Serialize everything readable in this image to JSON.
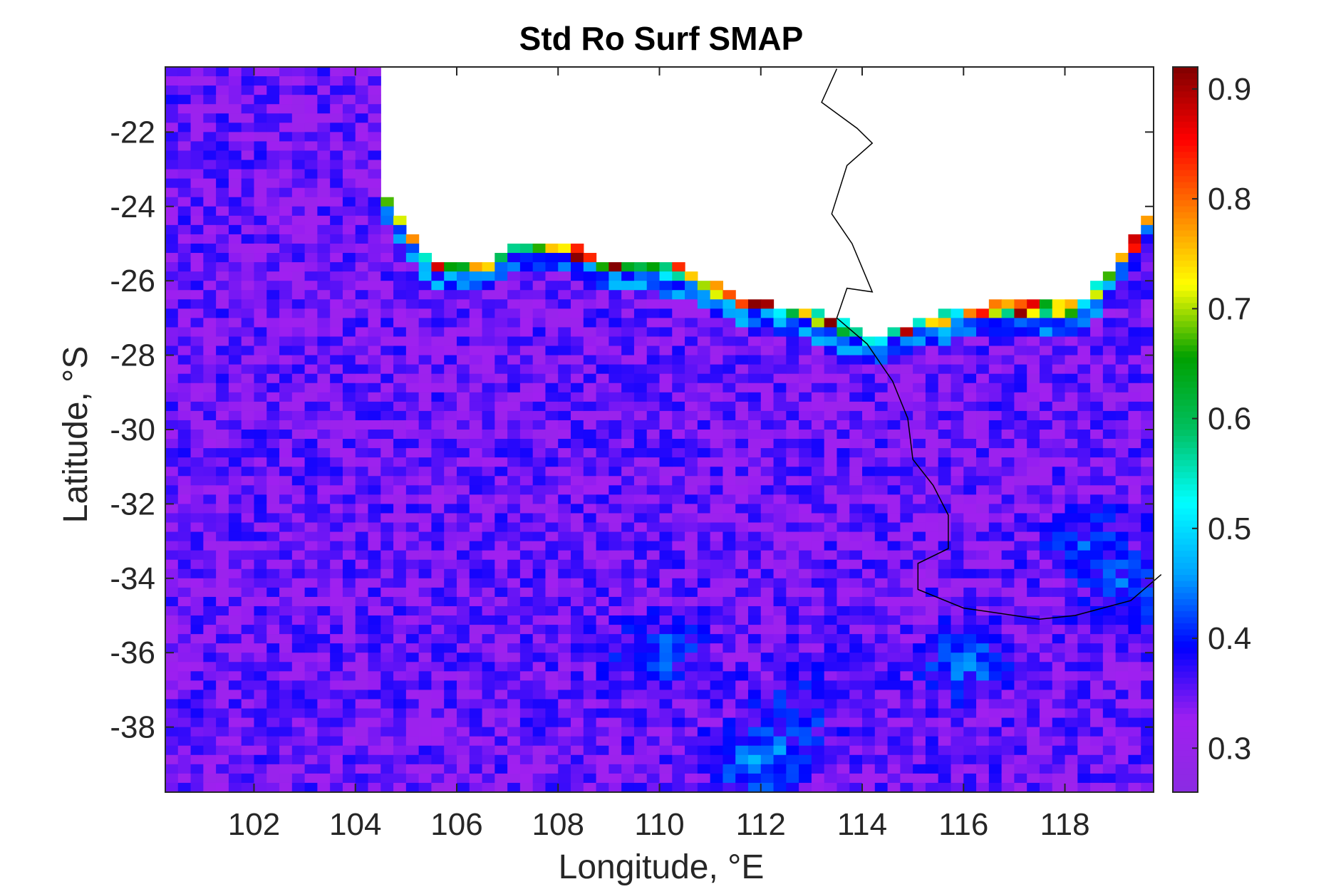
{
  "chart_data": {
    "type": "heatmap",
    "title": "Std Ro Surf SMAP",
    "xlabel": "Longitude, °E",
    "ylabel": "Latitude, °S",
    "xlim": [
      100.25,
      119.75
    ],
    "ylim": [
      -39.75,
      -20.25
    ],
    "xticks": [
      102,
      104,
      106,
      108,
      110,
      112,
      114,
      116,
      118
    ],
    "xtick_labels": [
      "102",
      "104",
      "106",
      "108",
      "110",
      "112",
      "114",
      "116",
      "118"
    ],
    "yticks": [
      -22,
      -24,
      -26,
      -28,
      -30,
      -32,
      -34,
      -36,
      -38
    ],
    "ytick_labels": [
      "-22",
      "-24",
      "-26",
      "-28",
      "-30",
      "-32",
      "-34",
      "-36",
      "-38"
    ],
    "colorbar": {
      "range": [
        0.26,
        0.92
      ],
      "ticks": [
        0.3,
        0.4,
        0.5,
        0.6,
        0.7,
        0.8,
        0.9
      ],
      "tick_labels": [
        "0.3",
        "0.4",
        "0.5",
        "0.6",
        "0.7",
        "0.8",
        "0.9"
      ],
      "colormap": [
        "#8a2be2",
        "#a020f0",
        "#0000ff",
        "#00a2ff",
        "#00ffff",
        "#00c060",
        "#00a000",
        "#ffff00",
        "#ff8000",
        "#ff0000",
        "#800000"
      ]
    },
    "grid_resolution_deg": 0.25,
    "typical_value_range": [
      0.3,
      0.42
    ],
    "land_mask_color": "#ffffff",
    "coastline_color": "#000000",
    "features": [
      {
        "description": "continental shelf edge high values",
        "value": 0.9
      },
      {
        "description": "open ocean background",
        "value": 0.36
      },
      {
        "description": "eddy patch near 112E 39S",
        "value": 0.46
      }
    ]
  }
}
